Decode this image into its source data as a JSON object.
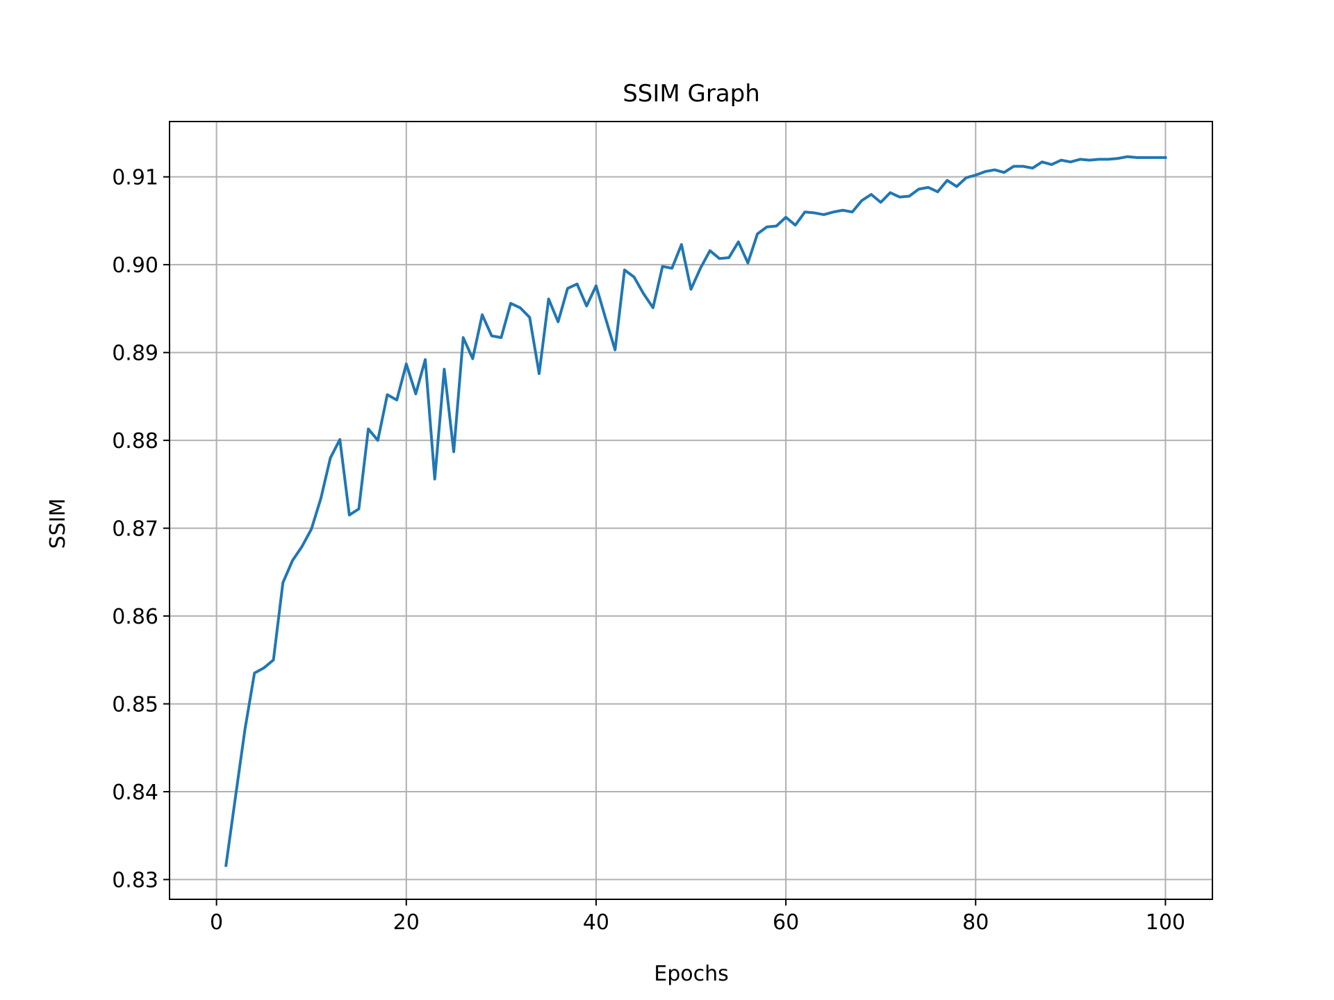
{
  "chart_data": {
    "type": "line",
    "title": "SSIM Graph",
    "xlabel": "Epochs",
    "ylabel": "SSIM",
    "xlim": [
      -4.95,
      104.95
    ],
    "ylim": [
      0.82775,
      0.9163
    ],
    "xticks": [
      0,
      20,
      40,
      60,
      80,
      100
    ],
    "xtick_labels": [
      "0",
      "20",
      "40",
      "60",
      "80",
      "100"
    ],
    "yticks": [
      0.83,
      0.84,
      0.85,
      0.86,
      0.87,
      0.88,
      0.89,
      0.9,
      0.91
    ],
    "ytick_labels": [
      "0.83",
      "0.84",
      "0.85",
      "0.86",
      "0.87",
      "0.88",
      "0.89",
      "0.90",
      "0.91"
    ],
    "grid": true,
    "legend": "none",
    "line_color": "#1f77b4",
    "series": [
      {
        "x": [
          1,
          2,
          3,
          4,
          5,
          6,
          7,
          8,
          9,
          10,
          11,
          12,
          13,
          14,
          15,
          16,
          17,
          18,
          19,
          20,
          21,
          22,
          23,
          24,
          25,
          26,
          27,
          28,
          29,
          30,
          31,
          32,
          33,
          34,
          35,
          36,
          37,
          38,
          39,
          40,
          41,
          42,
          43,
          44,
          45,
          46,
          47,
          48,
          49,
          50,
          51,
          52,
          53,
          54,
          55,
          56,
          57,
          58,
          59,
          60,
          61,
          62,
          63,
          64,
          65,
          66,
          67,
          68,
          69,
          70,
          71,
          72,
          73,
          74,
          75,
          76,
          77,
          78,
          79,
          80,
          81,
          82,
          83,
          84,
          85,
          86,
          87,
          88,
          89,
          90,
          91,
          92,
          93,
          94,
          95,
          96,
          97,
          98,
          99,
          100
        ],
        "values": [
          0.8316,
          0.8394,
          0.8471,
          0.8535,
          0.8541,
          0.855,
          0.8638,
          0.8663,
          0.8679,
          0.8699,
          0.8734,
          0.878,
          0.8801,
          0.8715,
          0.8722,
          0.8813,
          0.88,
          0.8852,
          0.8846,
          0.8887,
          0.8853,
          0.8892,
          0.8756,
          0.8881,
          0.8787,
          0.8917,
          0.8893,
          0.8943,
          0.8919,
          0.8917,
          0.8956,
          0.8951,
          0.894,
          0.8876,
          0.8961,
          0.8935,
          0.8973,
          0.8978,
          0.8953,
          0.8976,
          0.8939,
          0.8903,
          0.8994,
          0.8986,
          0.8967,
          0.8951,
          0.8998,
          0.8996,
          0.9023,
          0.8972,
          0.8996,
          0.9016,
          0.9007,
          0.9008,
          0.9026,
          0.9002,
          0.9035,
          0.9043,
          0.9044,
          0.9054,
          0.9045,
          0.906,
          0.9059,
          0.9057,
          0.906,
          0.9062,
          0.906,
          0.9073,
          0.908,
          0.9071,
          0.9082,
          0.9077,
          0.9078,
          0.9086,
          0.9088,
          0.9083,
          0.9096,
          0.9089,
          0.9099,
          0.9102,
          0.9106,
          0.9108,
          0.9105,
          0.9112,
          0.9112,
          0.911,
          0.9117,
          0.9114,
          0.9119,
          0.9117,
          0.912,
          0.9119,
          0.912,
          0.912,
          0.9121,
          0.9123,
          0.9122,
          0.9122,
          0.9122,
          0.9122
        ]
      }
    ]
  }
}
